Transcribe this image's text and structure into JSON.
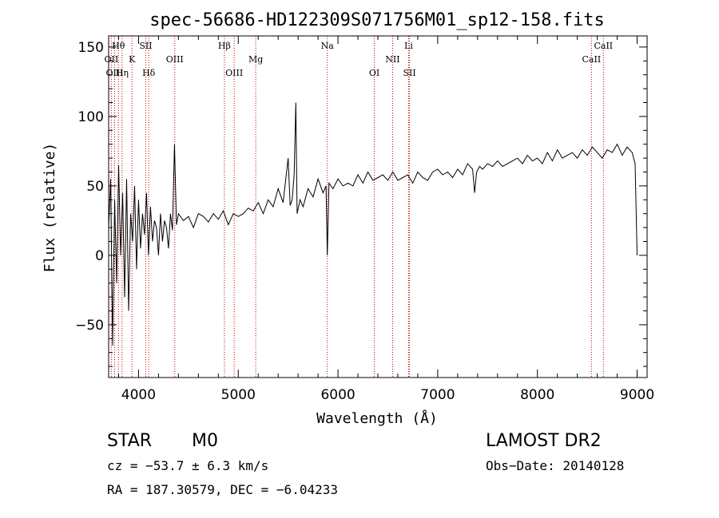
{
  "chart_data": {
    "type": "line",
    "title": "spec-56686-HD122309S071756M01_sp12-158.fits",
    "xlabel": "Wavelength (Å)",
    "ylabel": "Flux (relative)",
    "xlim": [
      3700,
      9100
    ],
    "ylim": [
      -88,
      158
    ],
    "xticks": [
      4000,
      5000,
      6000,
      7000,
      8000,
      9000
    ],
    "xtick_labels": [
      "4000",
      "5000",
      "6000",
      "7000",
      "8000",
      "9000"
    ],
    "yticks": [
      -50,
      0,
      50,
      100,
      150
    ],
    "ytick_labels": [
      "−50",
      "0",
      "50",
      "100",
      "150"
    ],
    "grid": false,
    "line_color": "#000000",
    "marker_color": "#c00000",
    "spectral_lines": [
      {
        "label": "Hθ",
        "wavelength": 3798,
        "row": 1
      },
      {
        "label": "OII",
        "wavelength": 3727,
        "row": 2
      },
      {
        "label": "OIII",
        "wavelength": 3760,
        "row": 3
      },
      {
        "label": "Hη",
        "wavelength": 3835,
        "row": 3
      },
      {
        "label": "SII",
        "wavelength": 4072,
        "row": 1
      },
      {
        "label": "K",
        "wavelength": 3934,
        "row": 2
      },
      {
        "label": "Hδ",
        "wavelength": 4102,
        "row": 3
      },
      {
        "label": "OIII",
        "wavelength": 4363,
        "row": 2
      },
      {
        "label": "Hβ",
        "wavelength": 4861,
        "row": 1
      },
      {
        "label": "OIII",
        "wavelength": 4959,
        "row": 3
      },
      {
        "label": "Mg",
        "wavelength": 5175,
        "row": 2
      },
      {
        "label": "Na",
        "wavelength": 5893,
        "row": 1
      },
      {
        "label": "OI",
        "wavelength": 6364,
        "row": 3
      },
      {
        "label": "NII",
        "wavelength": 6548,
        "row": 2
      },
      {
        "label": "Li",
        "wavelength": 6708,
        "row": 1
      },
      {
        "label": "SII",
        "wavelength": 6717,
        "row": 3
      },
      {
        "label": "CaII",
        "wavelength": 8662,
        "row": 1
      },
      {
        "label": "CaII",
        "wavelength": 8542,
        "row": 2
      }
    ],
    "series": [
      {
        "x": [
          3700,
          3720,
          3740,
          3760,
          3780,
          3800,
          3820,
          3840,
          3860,
          3880,
          3900,
          3920,
          3940,
          3960,
          3980,
          4000,
          4020,
          4040,
          4060,
          4080,
          4100,
          4120,
          4140,
          4160,
          4180,
          4200,
          4220,
          4240,
          4260,
          4280,
          4300,
          4320,
          4340,
          4360,
          4380,
          4400,
          4450,
          4500,
          4550,
          4600,
          4650,
          4700,
          4750,
          4800,
          4850,
          4900,
          4950,
          5000,
          5050,
          5100,
          5150,
          5200,
          5250,
          5300,
          5350,
          5400,
          5450,
          5500,
          5520,
          5540,
          5560,
          5577,
          5590,
          5620,
          5650,
          5700,
          5750,
          5800,
          5850,
          5880,
          5893,
          5910,
          5950,
          6000,
          6050,
          6100,
          6150,
          6200,
          6250,
          6300,
          6350,
          6400,
          6450,
          6500,
          6550,
          6600,
          6650,
          6700,
          6750,
          6800,
          6850,
          6900,
          6950,
          7000,
          7050,
          7100,
          7150,
          7200,
          7250,
          7300,
          7350,
          7370,
          7390,
          7420,
          7450,
          7500,
          7550,
          7600,
          7650,
          7700,
          7750,
          7800,
          7850,
          7900,
          7950,
          8000,
          8050,
          8100,
          8150,
          8200,
          8250,
          8300,
          8350,
          8400,
          8450,
          8500,
          8550,
          8600,
          8650,
          8700,
          8750,
          8800,
          8850,
          8900,
          8950,
          8980,
          9000
        ],
        "y": [
          20,
          55,
          -65,
          40,
          -20,
          65,
          0,
          45,
          -30,
          55,
          -40,
          30,
          10,
          50,
          -10,
          40,
          5,
          30,
          15,
          45,
          0,
          35,
          10,
          25,
          20,
          0,
          30,
          10,
          25,
          20,
          5,
          30,
          18,
          80,
          22,
          30,
          25,
          28,
          20,
          30,
          28,
          24,
          30,
          26,
          32,
          22,
          30,
          28,
          30,
          34,
          32,
          38,
          30,
          40,
          35,
          48,
          38,
          70,
          36,
          40,
          58,
          110,
          30,
          40,
          35,
          48,
          42,
          55,
          45,
          50,
          0,
          52,
          48,
          55,
          50,
          52,
          50,
          58,
          52,
          60,
          54,
          56,
          58,
          54,
          60,
          54,
          56,
          58,
          52,
          60,
          56,
          54,
          60,
          62,
          58,
          60,
          56,
          62,
          58,
          66,
          62,
          45,
          60,
          64,
          62,
          66,
          64,
          68,
          64,
          66,
          68,
          70,
          66,
          72,
          68,
          70,
          66,
          74,
          68,
          76,
          70,
          72,
          74,
          70,
          76,
          72,
          78,
          74,
          70,
          76,
          74,
          80,
          72,
          78,
          74,
          66,
          0
        ]
      }
    ]
  },
  "annotations": {
    "object_class": "STAR",
    "subclass": "M0",
    "survey": "LAMOST DR2",
    "redshift": "cz = −53.7 ± 6.3 km/s",
    "obs_date": "Obs−Date: 20140128",
    "coords": "RA = 187.30579, DEC =  −6.04233"
  }
}
